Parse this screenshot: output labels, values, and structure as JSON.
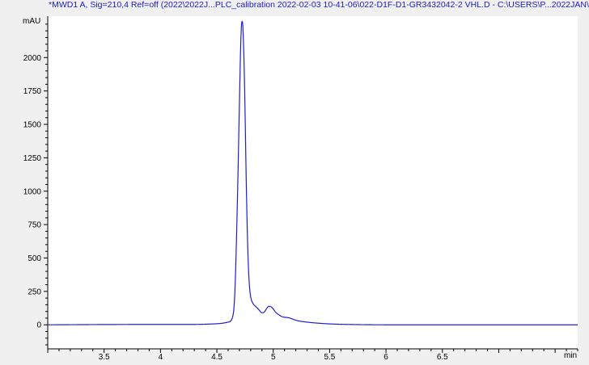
{
  "window": {
    "title": "*MWD1 A, Sig=210,4 Ref=off (2022\\2022J...PLC_calibration 2022-02-03 10-41-06\\022-D1F-D1-GR3432042-2 VHL.D - C:\\USERS\\P...2022JAN\\"
  },
  "chart_data": {
    "type": "line",
    "title": "*MWD1 A, Sig=210,4 Ref=off (2022\\2022J...PLC_calibration 2022-02-03 10-41-06\\022-D1F-D1-GR3432042-2 VHL.D - C:\\USERS\\P...2022JAN\\",
    "xlabel": "min",
    "ylabel": "mAU",
    "xlim": [
      3.0,
      7.7
    ],
    "ylim": [
      -180,
      2310
    ],
    "x_ticks": [
      3.5,
      4,
      4.5,
      5,
      5.5,
      6,
      6.5
    ],
    "x_tick_labels": [
      "3.5",
      "4",
      "4.5",
      "5",
      "5.5",
      "6",
      "6.5"
    ],
    "y_ticks": [
      0,
      250,
      500,
      750,
      1000,
      1250,
      1500,
      1750,
      2000
    ],
    "y_tick_labels": [
      "0",
      "250",
      "500",
      "750",
      "1000",
      "1250",
      "1500",
      "1750",
      "2000"
    ],
    "grid": false,
    "line_color": "#1f1fcf",
    "series": [
      {
        "x": [
          3.0,
          3.5,
          4.0,
          4.3,
          4.5,
          4.6,
          4.64,
          4.66,
          4.68,
          4.7,
          4.71,
          4.72,
          4.725,
          4.73,
          4.74,
          4.75,
          4.76,
          4.77,
          4.78,
          4.79,
          4.8,
          4.82,
          4.84,
          4.86,
          4.88,
          4.9,
          4.92,
          4.94,
          4.96,
          4.98,
          5.0,
          5.02,
          5.05,
          5.08,
          5.12,
          5.15,
          5.18,
          5.22,
          5.3,
          5.4,
          5.55,
          5.7,
          6.0,
          6.5,
          7.0,
          7.7
        ],
        "y": [
          0,
          2,
          3,
          3,
          8,
          20,
          60,
          250,
          850,
          1650,
          2050,
          2260,
          2270,
          2240,
          2000,
          1600,
          1100,
          700,
          430,
          280,
          210,
          160,
          140,
          125,
          105,
          90,
          95,
          120,
          138,
          135,
          118,
          95,
          75,
          60,
          55,
          50,
          40,
          30,
          20,
          12,
          5,
          2,
          0,
          0,
          0,
          0
        ]
      }
    ]
  }
}
